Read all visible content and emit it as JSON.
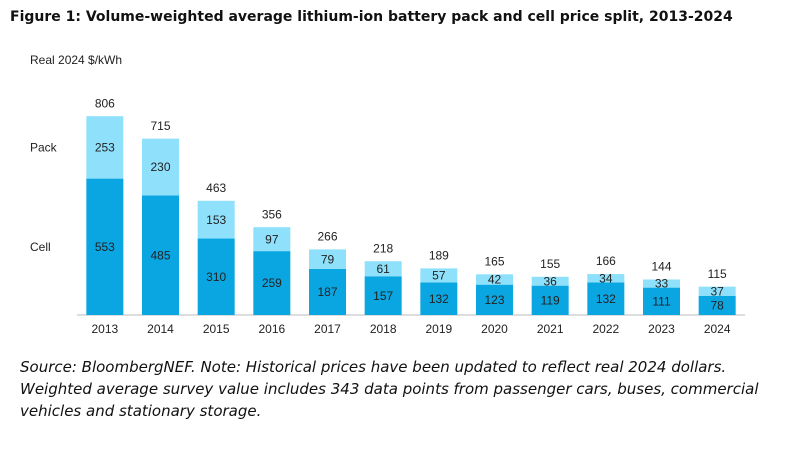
{
  "chart_data": {
    "type": "stacked-bar",
    "title": "Figure 1: Volume-weighted average lithium-ion battery pack and cell price split, 2013-2024",
    "y_label": "Real 2024 $/kWh",
    "categories": [
      "2013",
      "2014",
      "2015",
      "2016",
      "2017",
      "2018",
      "2019",
      "2020",
      "2021",
      "2022",
      "2023",
      "2024"
    ],
    "series": [
      {
        "name": "Cell",
        "color": "#0aa6e2",
        "values": [
          553,
          485,
          310,
          259,
          187,
          157,
          132,
          123,
          119,
          132,
          111,
          78
        ]
      },
      {
        "name": "Pack",
        "color": "#8fe1fb",
        "values": [
          253,
          230,
          153,
          97,
          79,
          61,
          57,
          42,
          36,
          34,
          33,
          37
        ]
      }
    ],
    "totals": [
      806,
      715,
      463,
      356,
      266,
      218,
      189,
      165,
      155,
      166,
      144,
      115
    ],
    "ylim": [
      0,
      900
    ],
    "source": "Source: BloombergNEF. Note: Historical prices have been updated to reflect real 2024 dollars. Weighted average survey value includes 343 data points from passenger cars, buses, commercial vehicles and stationary storage."
  }
}
